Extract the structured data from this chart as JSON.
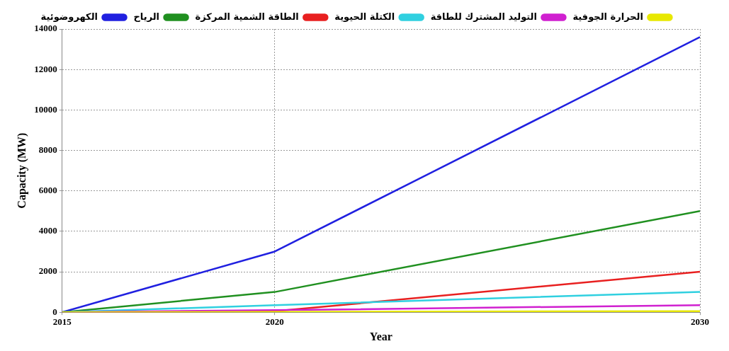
{
  "chart_data": {
    "type": "line",
    "xlabel": "Year",
    "ylabel": "Capacity (MW)",
    "x": [
      2015,
      2020,
      2030
    ],
    "xlim": [
      2015,
      2030
    ],
    "xticks": [
      2015,
      2020,
      2030
    ],
    "ylim": [
      0,
      14000
    ],
    "yticks": [
      0,
      2000,
      4000,
      6000,
      8000,
      10000,
      12000,
      14000
    ],
    "grid": true,
    "legend": "top",
    "line_style": "solid",
    "marker": "none",
    "series": [
      {
        "name": "الحرارة الجوفية",
        "color": "#e8e800",
        "values": [
          0,
          20,
          50
        ]
      },
      {
        "name": "التوليد المشترك للطاقة",
        "color": "#d020d0",
        "values": [
          0,
          100,
          350
        ]
      },
      {
        "name": "الكتلة الحيوية",
        "color": "#30d0e0",
        "values": [
          0,
          350,
          1000
        ]
      },
      {
        "name": "الطاقة الشمية المركزة",
        "color": "#e82020",
        "values": [
          0,
          50,
          2000
        ]
      },
      {
        "name": "الرياح",
        "color": "#209020",
        "values": [
          0,
          1000,
          5000
        ]
      },
      {
        "name": "الكهروضوئية",
        "color": "#2020e0",
        "values": [
          0,
          3000,
          13600
        ]
      }
    ]
  }
}
